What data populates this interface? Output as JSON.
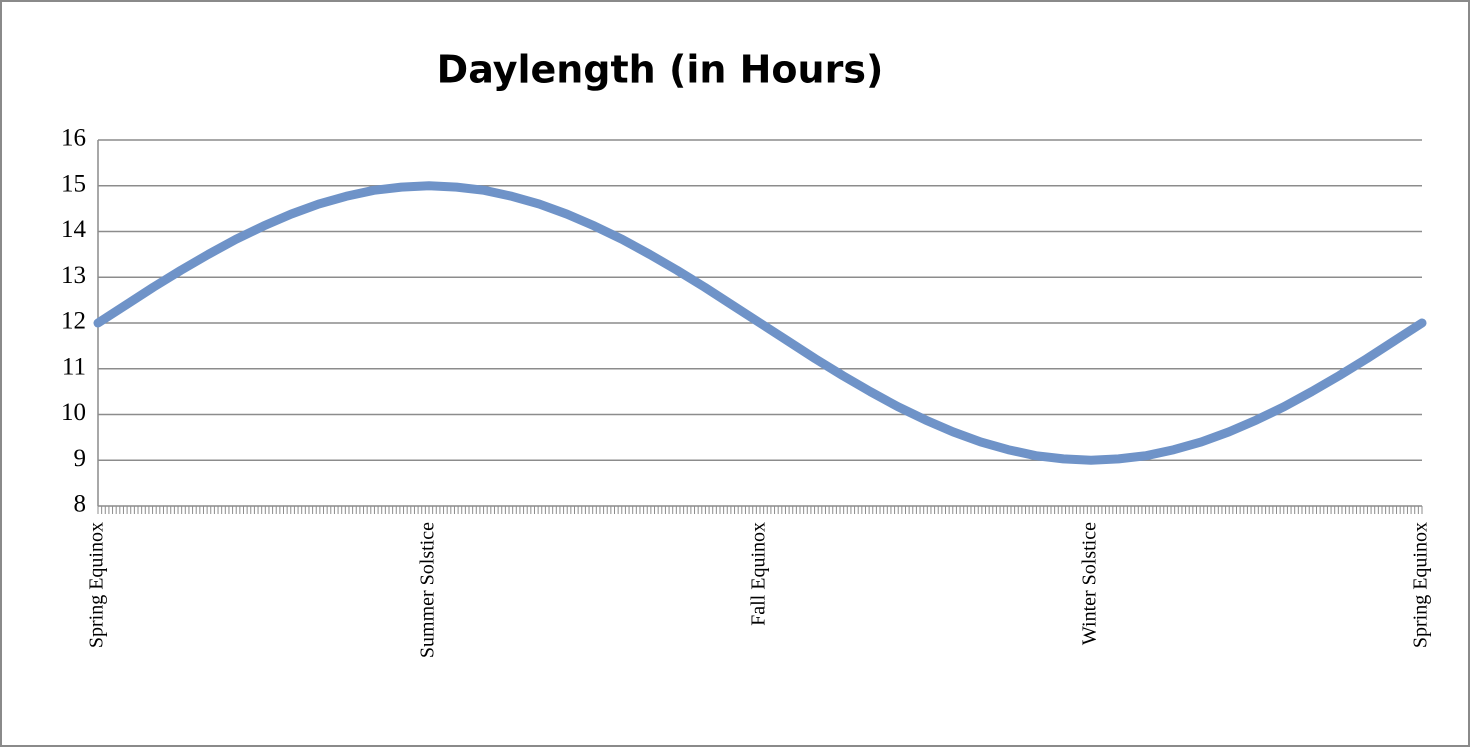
{
  "chart_data": {
    "type": "line",
    "title": "Daylength (in Hours)",
    "categories": [
      "Spring Equinox",
      null,
      null,
      null,
      null,
      null,
      null,
      null,
      null,
      null,
      null,
      null,
      "Summer Solstice",
      null,
      null,
      null,
      null,
      null,
      null,
      null,
      null,
      null,
      null,
      null,
      "Fall Equinox",
      null,
      null,
      null,
      null,
      null,
      null,
      null,
      null,
      null,
      null,
      null,
      "Winter Solstice",
      null,
      null,
      null,
      null,
      null,
      null,
      null,
      null,
      null,
      null,
      null,
      "Spring Equinox"
    ],
    "values": [
      12,
      12.39,
      12.78,
      13.15,
      13.5,
      13.83,
      14.12,
      14.38,
      14.6,
      14.77,
      14.9,
      14.97,
      15,
      14.97,
      14.9,
      14.77,
      14.6,
      14.38,
      14.12,
      13.83,
      13.5,
      13.15,
      12.78,
      12.39,
      12,
      11.61,
      11.22,
      10.85,
      10.5,
      10.17,
      9.88,
      9.62,
      9.4,
      9.23,
      9.1,
      9.03,
      9,
      9.03,
      9.1,
      9.23,
      9.4,
      9.62,
      9.88,
      10.17,
      10.5,
      10.85,
      11.22,
      11.61,
      12
    ],
    "color": "#6f93c8",
    "ylim": [
      8,
      16
    ],
    "yticks": [
      8,
      9,
      10,
      11,
      12,
      13,
      14,
      15,
      16
    ],
    "grid": true
  }
}
